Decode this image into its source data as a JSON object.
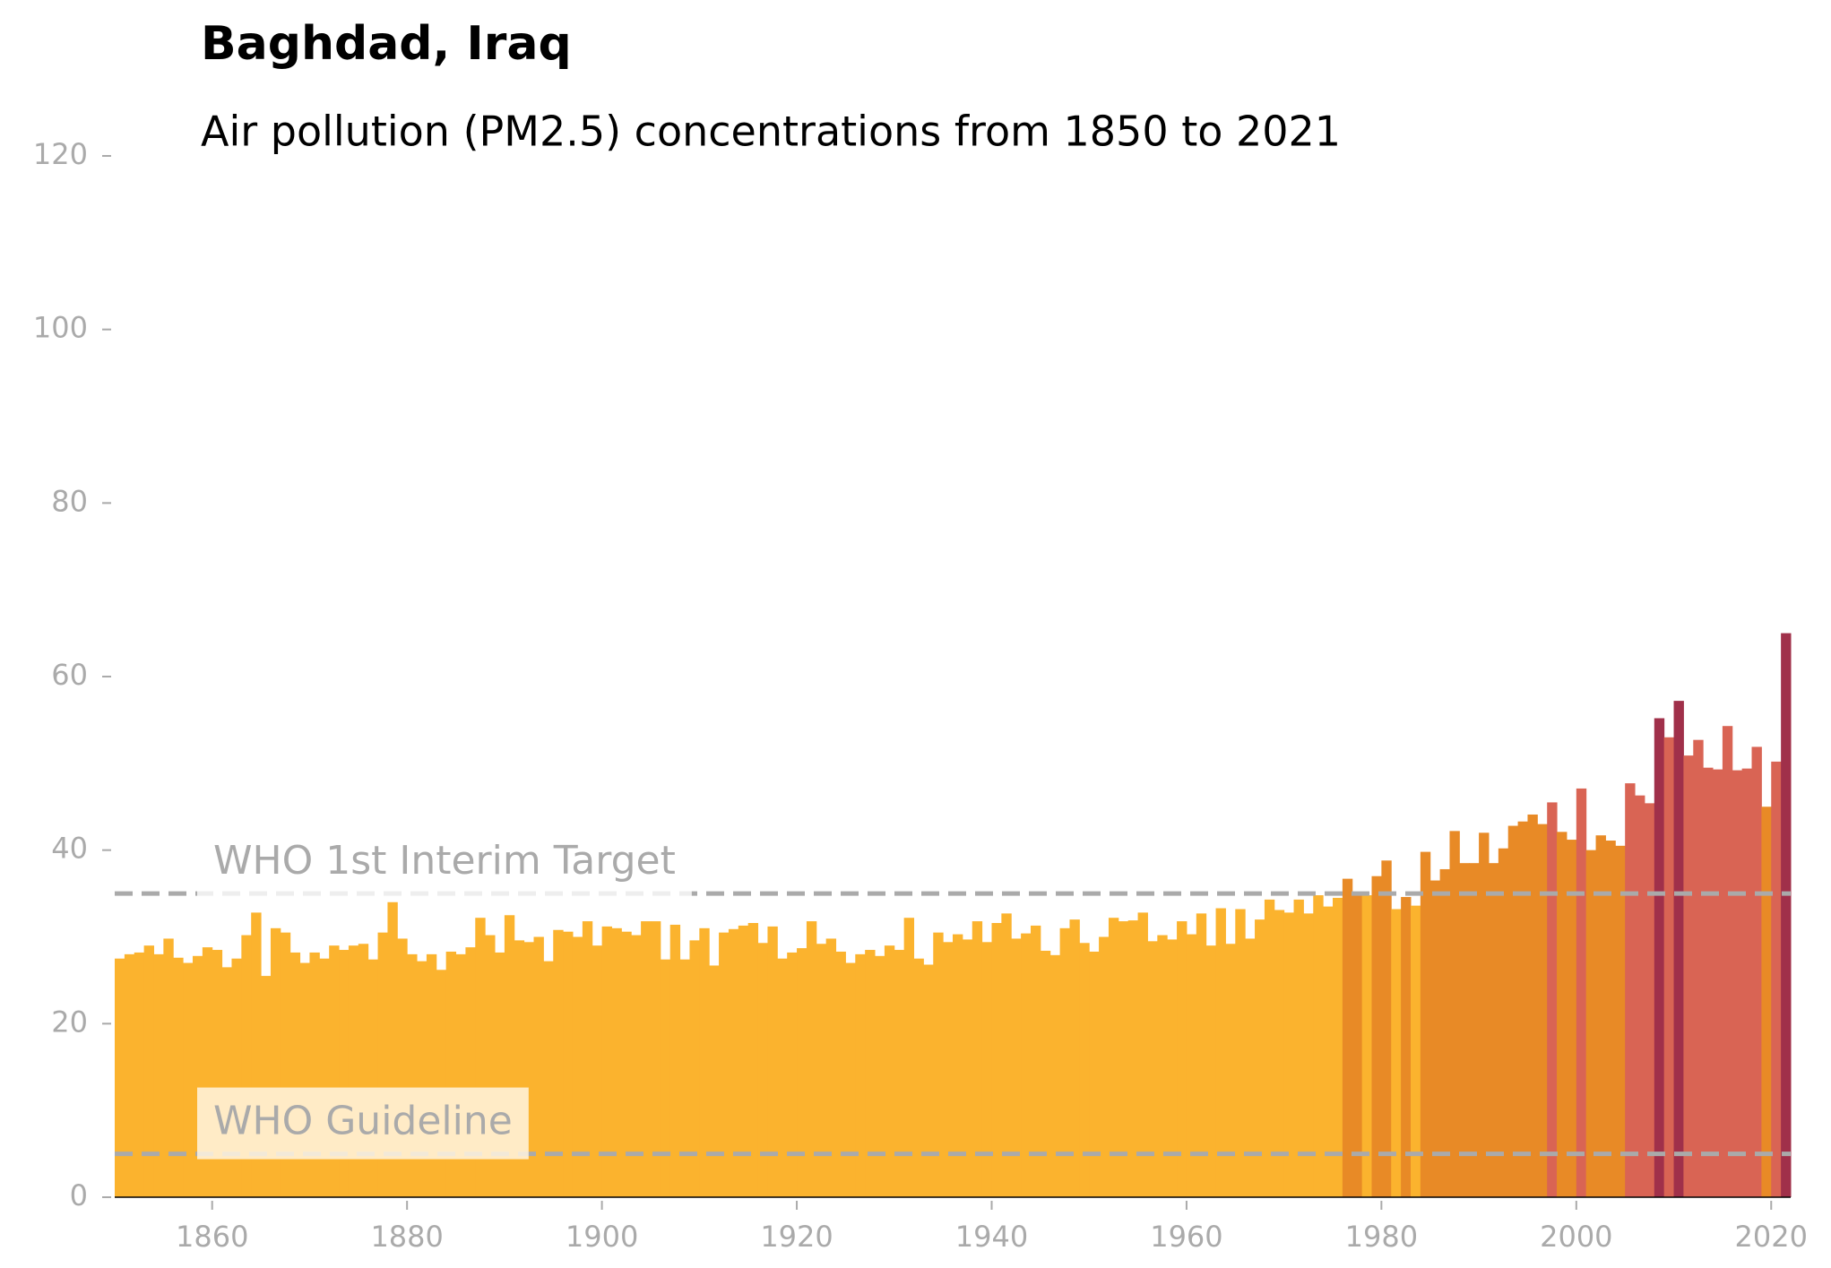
{
  "chart_data": {
    "type": "bar",
    "title": "Baghdad, Iraq",
    "subtitle": "Air pollution (PM2.5) concentrations from 1850 to 2021",
    "x": [
      1850,
      1851,
      1852,
      1853,
      1854,
      1855,
      1856,
      1857,
      1858,
      1859,
      1860,
      1861,
      1862,
      1863,
      1864,
      1865,
      1866,
      1867,
      1868,
      1869,
      1870,
      1871,
      1872,
      1873,
      1874,
      1875,
      1876,
      1877,
      1878,
      1879,
      1880,
      1881,
      1882,
      1883,
      1884,
      1885,
      1886,
      1887,
      1888,
      1889,
      1890,
      1891,
      1892,
      1893,
      1894,
      1895,
      1896,
      1897,
      1898,
      1899,
      1900,
      1901,
      1902,
      1903,
      1904,
      1905,
      1906,
      1907,
      1908,
      1909,
      1910,
      1911,
      1912,
      1913,
      1914,
      1915,
      1916,
      1917,
      1918,
      1919,
      1920,
      1921,
      1922,
      1923,
      1924,
      1925,
      1926,
      1927,
      1928,
      1929,
      1930,
      1931,
      1932,
      1933,
      1934,
      1935,
      1936,
      1937,
      1938,
      1939,
      1940,
      1941,
      1942,
      1943,
      1944,
      1945,
      1946,
      1947,
      1948,
      1949,
      1950,
      1951,
      1952,
      1953,
      1954,
      1955,
      1956,
      1957,
      1958,
      1959,
      1960,
      1961,
      1962,
      1963,
      1964,
      1965,
      1966,
      1967,
      1968,
      1969,
      1970,
      1971,
      1972,
      1973,
      1974,
      1975,
      1976,
      1977,
      1978,
      1979,
      1980,
      1981,
      1982,
      1983,
      1984,
      1985,
      1986,
      1987,
      1988,
      1989,
      1990,
      1991,
      1992,
      1993,
      1994,
      1995,
      1996,
      1997,
      1998,
      1999,
      2000,
      2001,
      2002,
      2003,
      2004,
      2005,
      2006,
      2007,
      2008,
      2009,
      2010,
      2011,
      2012,
      2013,
      2014,
      2015,
      2016,
      2017,
      2018,
      2019,
      2020,
      2021
    ],
    "values": [
      27.5,
      28,
      28.2,
      29,
      28,
      29.8,
      27.6,
      27,
      27.8,
      28.8,
      28.5,
      26.5,
      27.5,
      30.2,
      32.8,
      25.5,
      31,
      30.5,
      28.2,
      27,
      28.2,
      27.5,
      29,
      28.5,
      29,
      29.2,
      27.4,
      30.5,
      34,
      29.8,
      28,
      27.2,
      28,
      26.2,
      28.3,
      28,
      28.8,
      32.2,
      30.2,
      28.2,
      32.5,
      29.6,
      29.4,
      30,
      27.2,
      30.8,
      30.6,
      30,
      31.8,
      29,
      31.2,
      31,
      30.6,
      30.2,
      31.8,
      31.8,
      27.4,
      31.4,
      27.4,
      29.6,
      31,
      26.7,
      30.5,
      30.9,
      31.3,
      31.6,
      29.3,
      31.2,
      27.5,
      28.2,
      28.7,
      31.8,
      29.2,
      29.8,
      28.3,
      27,
      28,
      28.5,
      27.8,
      29,
      28.5,
      32.2,
      27.5,
      26.8,
      30.5,
      29.4,
      30.3,
      29.7,
      31.8,
      29.4,
      31.6,
      32.7,
      29.8,
      30.4,
      31.3,
      28.4,
      27.9,
      31,
      32,
      29.3,
      28.3,
      30,
      32.2,
      31.8,
      31.9,
      32.8,
      29.5,
      30.2,
      29.7,
      31.8,
      30.3,
      32.7,
      29,
      33.3,
      29.2,
      33.2,
      29.8,
      32,
      34.3,
      33.1,
      32.8,
      34.3,
      32.7,
      34.8,
      33.5,
      34.5,
      36.7,
      35.2,
      34.8,
      37,
      38.8,
      33.2,
      34.6,
      33.6,
      39.8,
      36.5,
      37.8,
      42.2,
      38.5,
      38.5,
      42,
      38.5,
      40.2,
      42.8,
      43.3,
      44.1,
      43,
      45.5,
      42.1,
      41.2,
      47.1,
      40,
      41.7,
      41.1,
      40.5,
      47.7,
      46.3,
      45.4,
      55.2,
      53,
      57.2,
      50.9,
      52.7,
      49.5,
      49.3,
      54.3,
      49.2,
      49.4,
      51.9,
      45,
      50.2,
      65
    ],
    "colors": [
      "#fbb32e",
      "#fbb32e",
      "#fbb32e",
      "#fbb32e",
      "#fbb32e",
      "#fbb32e",
      "#fbb32e",
      "#fbb32e",
      "#fbb32e",
      "#fbb32e",
      "#fbb32e",
      "#fbb32e",
      "#fbb32e",
      "#fbb32e",
      "#fbb32e",
      "#fbb32e",
      "#fbb32e",
      "#fbb32e",
      "#fbb32e",
      "#fbb32e",
      "#fbb32e",
      "#fbb32e",
      "#fbb32e",
      "#fbb32e",
      "#fbb32e",
      "#fbb32e",
      "#fbb32e",
      "#fbb32e",
      "#fbb32e",
      "#fbb32e",
      "#fbb32e",
      "#fbb32e",
      "#fbb32e",
      "#fbb32e",
      "#fbb32e",
      "#fbb32e",
      "#fbb32e",
      "#fbb32e",
      "#fbb32e",
      "#fbb32e",
      "#fbb32e",
      "#fbb32e",
      "#fbb32e",
      "#fbb32e",
      "#fbb32e",
      "#fbb32e",
      "#fbb32e",
      "#fbb32e",
      "#fbb32e",
      "#fbb32e",
      "#fbb32e",
      "#fbb32e",
      "#fbb32e",
      "#fbb32e",
      "#fbb32e",
      "#fbb32e",
      "#fbb32e",
      "#fbb32e",
      "#fbb32e",
      "#fbb32e",
      "#fbb32e",
      "#fbb32e",
      "#fbb32e",
      "#fbb32e",
      "#fbb32e",
      "#fbb32e",
      "#fbb32e",
      "#fbb32e",
      "#fbb32e",
      "#fbb32e",
      "#fbb32e",
      "#fbb32e",
      "#fbb32e",
      "#fbb32e",
      "#fbb32e",
      "#fbb32e",
      "#fbb32e",
      "#fbb32e",
      "#fbb32e",
      "#fbb32e",
      "#fbb32e",
      "#fbb32e",
      "#fbb32e",
      "#fbb32e",
      "#fbb32e",
      "#fbb32e",
      "#fbb32e",
      "#fbb32e",
      "#fbb32e",
      "#fbb32e",
      "#fbb32e",
      "#fbb32e",
      "#fbb32e",
      "#fbb32e",
      "#fbb32e",
      "#fbb32e",
      "#fbb32e",
      "#fbb32e",
      "#fbb32e",
      "#fbb32e",
      "#fbb32e",
      "#fbb32e",
      "#fbb32e",
      "#fbb32e",
      "#fbb32e",
      "#fbb32e",
      "#fbb32e",
      "#fbb32e",
      "#fbb32e",
      "#fbb32e",
      "#fbb32e",
      "#fbb32e",
      "#fbb32e",
      "#fbb32e",
      "#fbb32e",
      "#fbb32e",
      "#fbb32e",
      "#fbb32e",
      "#fbb32e",
      "#fbb32e",
      "#fbb32e",
      "#fbb32e",
      "#fbb32e",
      "#fbb32e",
      "#fbb32e",
      "#fbb32e",
      "#e88a26",
      "#e88a26",
      "#fbb32e",
      "#e88a26",
      "#e88a26",
      "#fbb32e",
      "#e88a26",
      "#fbb32e",
      "#e88a26",
      "#e88a26",
      "#e88a26",
      "#e88a26",
      "#e88a26",
      "#e88a26",
      "#e88a26",
      "#e88a26",
      "#e88a26",
      "#e88a26",
      "#e88a26",
      "#e88a26",
      "#e88a26",
      "#d96454",
      "#e88a26",
      "#e88a26",
      "#d96454",
      "#e88a26",
      "#e88a26",
      "#e88a26",
      "#e88a26",
      "#d96454",
      "#d96454",
      "#d96454",
      "#a0304a",
      "#d96454",
      "#a0304a",
      "#d96454",
      "#d96454",
      "#d96454",
      "#d96454",
      "#d96454",
      "#d96454",
      "#d96454",
      "#d96454",
      "#e88a26",
      "#d96454",
      "#a0304a"
    ],
    "xlim": [
      1850,
      2022
    ],
    "xticks": [
      1860,
      1880,
      1900,
      1920,
      1940,
      1960,
      1980,
      2000,
      2020
    ],
    "ylim": [
      0,
      120
    ],
    "yticks": [
      0,
      20,
      40,
      60,
      80,
      100,
      120
    ],
    "annotations": [
      {
        "label": "WHO 1st Interim Target",
        "value": 35
      },
      {
        "label": "WHO Guideline",
        "value": 5
      }
    ]
  }
}
